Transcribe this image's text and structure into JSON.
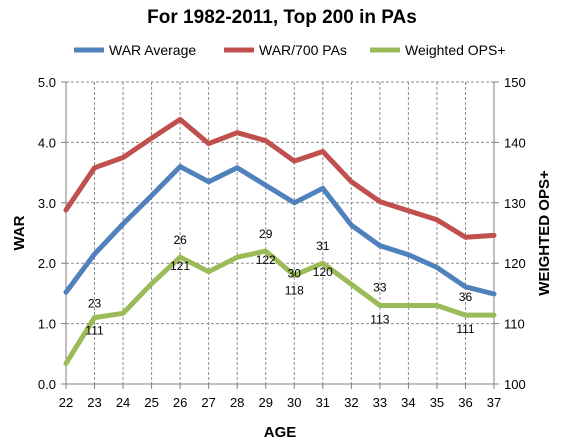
{
  "chart_data": {
    "type": "line",
    "title": "For 1982-2011, Top 200 in PAs",
    "xlabel": "AGE",
    "ylabel": "WAR",
    "y2label": "WEIGHTED OPS+",
    "categories": [
      22,
      23,
      24,
      25,
      26,
      27,
      28,
      29,
      30,
      31,
      32,
      33,
      34,
      35,
      36,
      37
    ],
    "ylim": [
      0,
      5
    ],
    "y2lim": [
      100,
      150
    ],
    "yticks": [
      "0.0",
      "1.0",
      "2.0",
      "3.0",
      "4.0",
      "5.0"
    ],
    "y2ticks": [
      "100",
      "110",
      "120",
      "130",
      "140",
      "150"
    ],
    "grid": true,
    "legend_position": "top",
    "series": [
      {
        "name": "WAR Average",
        "axis": "left",
        "color": "#4f81bd",
        "values": [
          1.52,
          2.15,
          2.65,
          3.12,
          3.6,
          3.35,
          3.58,
          3.29,
          3.0,
          3.24,
          2.63,
          2.29,
          2.14,
          1.93,
          1.61,
          1.49
        ]
      },
      {
        "name": "WAR/700 PAs",
        "axis": "left",
        "color": "#c0504d",
        "values": [
          2.88,
          3.58,
          3.75,
          4.07,
          4.38,
          3.98,
          4.16,
          4.03,
          3.69,
          3.85,
          3.35,
          3.02,
          2.87,
          2.72,
          2.43,
          2.46
        ]
      },
      {
        "name": "Weighted OPS+",
        "axis": "right",
        "color": "#9bbb59",
        "values": [
          103.4,
          111,
          111.7,
          116.6,
          121,
          118.6,
          121,
          122,
          118,
          120,
          116.5,
          113,
          113,
          113,
          111.4,
          111.4
        ]
      }
    ],
    "annotations": [
      {
        "age": 23,
        "top": "23",
        "bottom": "111"
      },
      {
        "age": 26,
        "top": "26",
        "bottom": "121"
      },
      {
        "age": 29,
        "top": "29",
        "bottom": "122"
      },
      {
        "age": 30,
        "top": "30",
        "bottom": "118"
      },
      {
        "age": 31,
        "top": "31",
        "bottom": "120"
      },
      {
        "age": 33,
        "top": "33",
        "bottom": "113"
      },
      {
        "age": 36,
        "top": "36",
        "bottom": "111"
      }
    ]
  }
}
